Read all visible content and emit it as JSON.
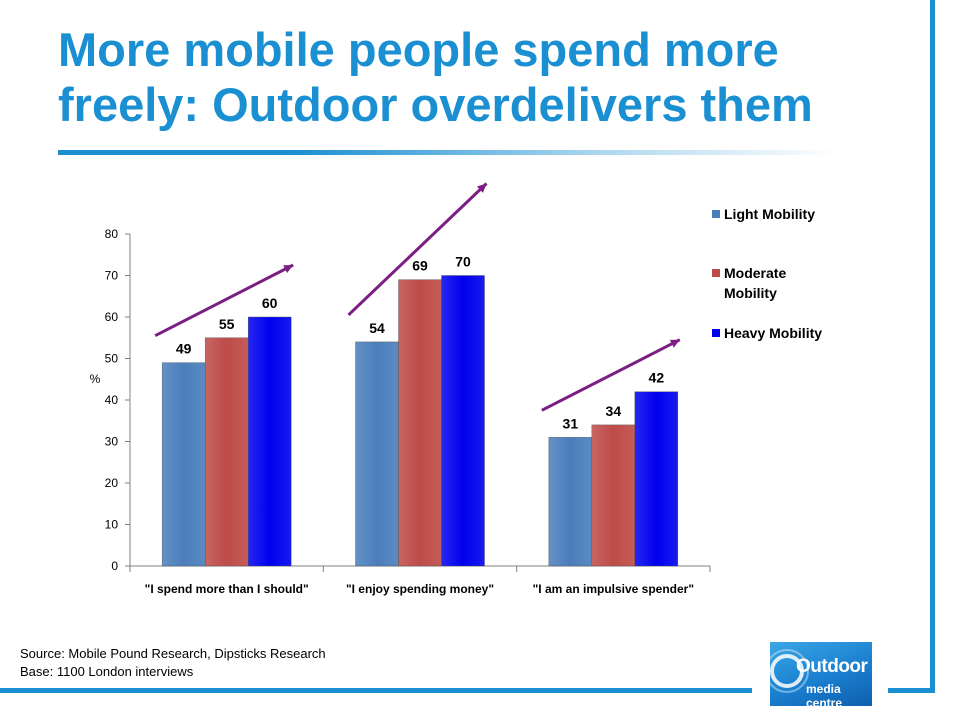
{
  "slide": {
    "title": "More mobile people spend more freely: Outdoor overdelivers them",
    "source": "Source: Mobile Pound  Research, Dipsticks Research",
    "base": "Base: 1100 London interviews",
    "logo": {
      "word": "Outdoor",
      "sub": "media centre"
    },
    "accent_color": "#1a8fd2"
  },
  "chart_data": {
    "type": "bar",
    "categories": [
      "\"I spend more than I should\"",
      "\"I enjoy spending money\"",
      "\"I am an impulsive spender\""
    ],
    "series": [
      {
        "name": "Light Mobility",
        "values": [
          49,
          54,
          31
        ],
        "color": "#4a7ebb"
      },
      {
        "name": "Moderate Mobility",
        "values": [
          55,
          69,
          34
        ],
        "color": "#be4b48"
      },
      {
        "name": "Heavy Mobility",
        "values": [
          60,
          70,
          42
        ],
        "color": "#0000ee"
      }
    ],
    "ylabel": "%",
    "xlabel": "",
    "ylim": [
      0,
      80
    ],
    "yticks": [
      0,
      10,
      20,
      30,
      40,
      50,
      60,
      70,
      80
    ],
    "grid": false,
    "legend_position": "right",
    "data_labels": true,
    "trend_arrow_color": "#7b1f84"
  }
}
